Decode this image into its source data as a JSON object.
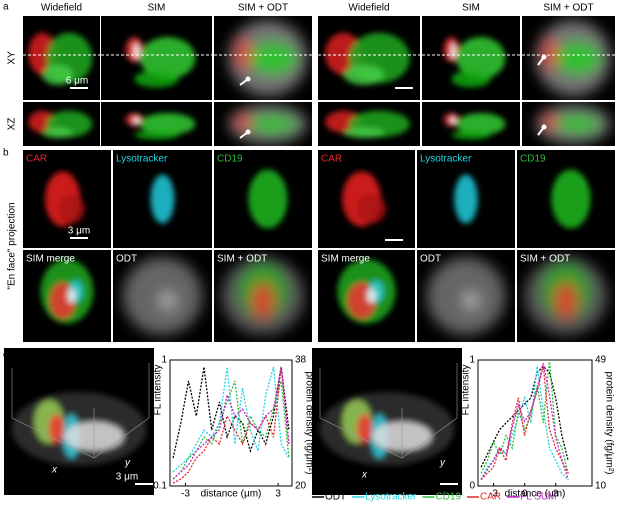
{
  "figure": {
    "panels": [
      "a",
      "b",
      "c"
    ],
    "a_headers": [
      "Widefield",
      "SIM",
      "SIM + ODT",
      "Widefield",
      "SIM",
      "SIM + ODT"
    ],
    "a_rows": [
      "XY",
      "XZ"
    ],
    "a_scale": "6 μm",
    "b_labels": [
      "CAR",
      "Lysotracker",
      "CD19",
      "SIM merge",
      "ODT",
      "SIM + ODT",
      "CAR",
      "Lysotracker",
      "CD19",
      "SIM merge",
      "ODT",
      "SIM + ODT"
    ],
    "b_side": "\"En face\" projection",
    "b_scale": "3 μm",
    "c_axes": [
      "x",
      "y",
      "x",
      "y"
    ],
    "c_scale": "3 μm"
  },
  "chart_data": [
    {
      "type": "line",
      "xlabel": "distance (μm)",
      "ylabel": "FL intensity",
      "y2label": "protein density (fg/μm²)",
      "x": [
        -3.8,
        -3.3,
        -2.8,
        -2.3,
        -1.8,
        -1.3,
        -0.8,
        -0.3,
        0.2,
        0.7,
        1.2,
        1.7,
        2.2,
        2.7,
        3.2,
        3.7
      ],
      "xlim": [
        -4,
        3.9
      ],
      "xticks": [
        -3,
        3
      ],
      "ylim": [
        0.1,
        1
      ],
      "yticks": [
        0.1,
        1
      ],
      "y2lim": [
        20,
        38
      ],
      "y2ticks": [
        20,
        38
      ],
      "series": [
        {
          "name": "ODT",
          "color": "#000000",
          "values": [
            0.3,
            0.55,
            0.85,
            0.6,
            0.95,
            0.5,
            0.7,
            0.45,
            0.6,
            0.55,
            0.35,
            0.5,
            0.4,
            0.6,
            0.95,
            0.5
          ]
        },
        {
          "name": "Lysotracker",
          "color": "#22d3e6",
          "values": [
            0.2,
            0.25,
            0.3,
            0.4,
            0.5,
            0.45,
            0.55,
            0.95,
            0.4,
            0.8,
            0.5,
            0.35,
            0.75,
            0.95,
            0.4,
            0.3
          ]
        },
        {
          "name": "CD19",
          "color": "#2fbf3a",
          "values": [
            0.15,
            0.2,
            0.3,
            0.35,
            0.45,
            0.4,
            0.55,
            0.7,
            0.85,
            0.4,
            0.6,
            0.5,
            0.45,
            0.65,
            0.85,
            0.3
          ]
        },
        {
          "name": "CAR",
          "color": "#e8262b",
          "values": [
            0.12,
            0.15,
            0.2,
            0.3,
            0.35,
            0.45,
            0.4,
            0.6,
            0.5,
            0.4,
            0.55,
            0.5,
            0.6,
            0.45,
            0.95,
            0.4
          ]
        },
        {
          "name": "FL SUM",
          "color": "#c026c8",
          "axis": "y2",
          "values": [
            21,
            22,
            23,
            25,
            26,
            27,
            28,
            33,
            30,
            31,
            29,
            28,
            30,
            31,
            37,
            26
          ]
        }
      ]
    },
    {
      "type": "line",
      "xlabel": "distance (μm)",
      "ylabel": "FL intensity",
      "y2label": "protein density (fg/μm²)",
      "x": [
        -4.2,
        -3.6,
        -3,
        -2.4,
        -1.8,
        -1.2,
        -0.6,
        0,
        0.6,
        1.2,
        1.8,
        2.4,
        3,
        3.6,
        4.2
      ],
      "xlim": [
        -4.5,
        6.5
      ],
      "xticks": [
        -3,
        0,
        3
      ],
      "ylim": [
        0,
        1
      ],
      "yticks": [
        0,
        1
      ],
      "y2lim": [
        10,
        49
      ],
      "y2ticks": [
        10,
        49
      ],
      "series": [
        {
          "name": "ODT",
          "color": "#000000",
          "values": [
            0.15,
            0.25,
            0.35,
            0.45,
            0.5,
            0.55,
            0.6,
            0.65,
            0.7,
            0.9,
            0.95,
            0.9,
            0.7,
            0.4,
            0.2
          ]
        },
        {
          "name": "Lysotracker",
          "color": "#22d3e6",
          "values": [
            0.05,
            0.15,
            0.2,
            0.3,
            0.25,
            0.4,
            0.55,
            0.7,
            0.5,
            0.95,
            0.6,
            0.3,
            0.2,
            0.1,
            0.05
          ]
        },
        {
          "name": "CD19",
          "color": "#2fbf3a",
          "values": [
            0.1,
            0.2,
            0.35,
            0.25,
            0.4,
            0.3,
            0.6,
            0.45,
            0.55,
            0.8,
            0.5,
            1.0,
            0.4,
            0.3,
            0.1
          ]
        },
        {
          "name": "CAR",
          "color": "#e8262b",
          "values": [
            0.05,
            0.1,
            0.15,
            0.3,
            0.2,
            0.5,
            0.7,
            0.4,
            0.6,
            0.75,
            0.95,
            0.45,
            0.3,
            0.2,
            0.1
          ]
        },
        {
          "name": "FL SUM",
          "color": "#c026c8",
          "axis": "y2",
          "values": [
            12,
            15,
            18,
            22,
            20,
            28,
            35,
            30,
            33,
            40,
            48,
            38,
            25,
            18,
            12
          ]
        }
      ]
    }
  ]
}
